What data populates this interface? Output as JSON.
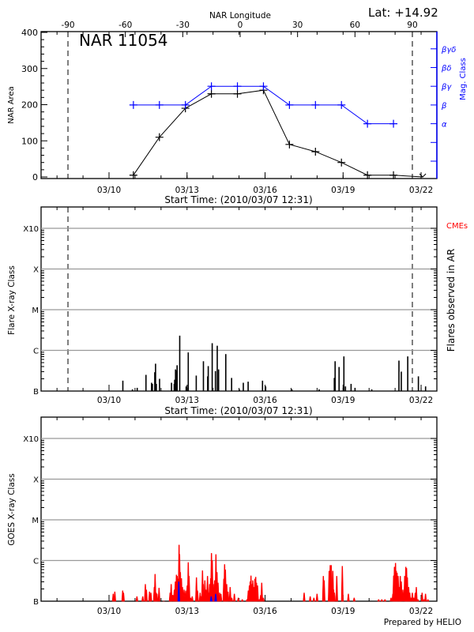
{
  "colors": {
    "area": "#000000",
    "mag_class": "#0000ff",
    "goes_long": "#ff0000",
    "goes_short": "#0000ff",
    "grid": "#999999",
    "cme": "#ff0000"
  },
  "header": {
    "lat_label": "Lat: +14.92",
    "region_label": "NAR 11054"
  },
  "footer": {
    "prepared_by": "Prepared by HELIO"
  },
  "x_dates": {
    "ticks": [
      "03/10",
      "03/13",
      "03/16",
      "03/19",
      "03/22"
    ],
    "xlim": [
      "03/07 09:20",
      "03/22 14:30"
    ],
    "start_time_label": "Start Time: (2010/03/07 12:31)"
  },
  "chart_data": [
    {
      "type": "line",
      "panel": "nar",
      "top_axis": {
        "label": "NAR Longitude",
        "ticks": [
          "-90",
          "-60",
          "-30",
          "0",
          "30",
          "60",
          "90"
        ],
        "tick_values": [
          -90,
          -60,
          -30,
          0,
          30,
          60,
          90
        ]
      },
      "limb_markers_longitude": [
        -90,
        90
      ],
      "ylabel": "NAR Area",
      "ylim": [
        0,
        400
      ],
      "yticks": [
        "0",
        "100",
        "200",
        "300",
        "400"
      ],
      "y2label": "Mag. Class",
      "y2ticks": [
        "",
        "",
        "α",
        "β",
        "βγ",
        "βδ",
        "βγδ"
      ],
      "series": [
        {
          "key": "area",
          "x": [
            "03/10 22:30",
            "03/11 22:30",
            "03/12 22:30",
            "03/13 22:30",
            "03/14 22:30",
            "03/15 22:30",
            "03/16 22:30",
            "03/17 22:30",
            "03/18 22:30",
            "03/19 22:30",
            "03/20 22:30",
            "03/22 01:30"
          ],
          "values": [
            5,
            110,
            190,
            230,
            230,
            240,
            90,
            70,
            40,
            5,
            5,
            0
          ]
        },
        {
          "key": "mag_class",
          "x": [
            "03/10 22:30",
            "03/11 22:30",
            "03/12 22:30",
            "03/13 22:30",
            "03/14 22:30",
            "03/15 22:30",
            "03/16 22:30",
            "03/17 22:30",
            "03/18 22:30",
            "03/19 22:30",
            "03/20 22:30"
          ],
          "values": [
            "β",
            "β",
            "β",
            "βγ",
            "βγ",
            "βγ",
            "β",
            "β",
            "β",
            "α",
            "α"
          ]
        }
      ]
    },
    {
      "type": "bar",
      "panel": "flares",
      "ylabel": "Flare X-ray Class",
      "y2label": "Flares observed in AR",
      "cme_label": "CMEs",
      "yscale": "log",
      "yticks": [
        "B",
        "C",
        "M",
        "X",
        "X10"
      ],
      "grid": true,
      "limb_markers_longitude": [
        -90,
        90
      ],
      "flares": [
        [
          "03/10 12:46",
          "B1.8"
        ],
        [
          "03/10 21:35",
          "B1.1"
        ],
        [
          "03/11 02:01",
          "B1.2"
        ],
        [
          "03/11 10:06",
          "B2.5"
        ],
        [
          "03/11 15:16",
          "B1.6"
        ],
        [
          "03/11 16:01",
          "B1.5"
        ],
        [
          "03/11 18:13",
          "B2.9"
        ],
        [
          "03/11 18:56",
          "B4.7"
        ],
        [
          "03/11 19:40",
          "B1.5"
        ],
        [
          "03/11 22:38",
          "B2.0"
        ],
        [
          "03/12 09:40",
          "B1.6"
        ],
        [
          "03/12 12:09",
          "B1.5"
        ],
        [
          "03/12 12:36",
          "B1.9"
        ],
        [
          "03/12 13:22",
          "B3.4"
        ],
        [
          "03/12 14:05",
          "B3.2"
        ],
        [
          "03/12 14:50",
          "B4.3"
        ],
        [
          "03/12 17:15",
          "C2.3"
        ],
        [
          "03/12 23:10",
          "B1.3"
        ],
        [
          "03/13 01:07",
          "B8.9"
        ],
        [
          "03/13 08:30",
          "B2.4"
        ],
        [
          "03/13 15:07",
          "B5.4"
        ],
        [
          "03/13 19:03",
          "B2.3"
        ],
        [
          "03/13 19:34",
          "B4.1"
        ],
        [
          "03/13 23:13",
          "C1.5"
        ],
        [
          "03/14 02:12",
          "B3.1"
        ],
        [
          "03/14 03:53",
          "C1.3"
        ],
        [
          "03/14 05:07",
          "B3.4"
        ],
        [
          "03/14 11:45",
          "B8.1"
        ],
        [
          "03/14 17:08",
          "B2.1"
        ],
        [
          "03/15 00:17",
          "B1.1"
        ],
        [
          "03/15 03:56",
          "B1.6"
        ],
        [
          "03/15 08:23",
          "B1.7"
        ],
        [
          "03/15 21:39",
          "B1.8"
        ],
        [
          "03/16 00:34",
          "B1.3"
        ],
        [
          "03/17 00:50",
          "B1.1"
        ],
        [
          "03/18 01:55",
          "B1.1"
        ],
        [
          "03/18 15:55",
          "B2.1"
        ],
        [
          "03/18 16:39",
          "B5.4"
        ],
        [
          "03/18 20:18",
          "B3.9"
        ],
        [
          "03/19 00:45",
          "B7.1"
        ],
        [
          "03/19 02:12",
          "B1.3"
        ],
        [
          "03/19 07:22",
          "B1.5"
        ],
        [
          "03/19 11:01",
          "B1.2"
        ],
        [
          "03/20 02:28",
          "B1.1"
        ],
        [
          "03/21 03:33",
          "B5.6"
        ],
        [
          "03/21 05:44",
          "B3.0"
        ],
        [
          "03/21 11:40",
          "B7.1"
        ],
        [
          "03/21 21:30",
          "B2.3"
        ],
        [
          "03/22 04:08",
          "B1.3"
        ]
      ]
    },
    {
      "type": "line",
      "panel": "goes",
      "ylabel": "GOES X-ray Class",
      "yscale": "log",
      "yticks": [
        "B",
        "C",
        "M",
        "X",
        "X10"
      ],
      "grid": true,
      "series": [
        {
          "key": "goes_long",
          "points": [
            [
              "03/10 03:53",
              "B1.5"
            ],
            [
              "03/10 05:21",
              "B1.7"
            ],
            [
              "03/10 12:38",
              "B1.8"
            ],
            [
              "03/10 13:22",
              "B1.6"
            ],
            [
              "03/11 01:46",
              "B1.3"
            ],
            [
              "03/11 07:06",
              "B1.3"
            ],
            [
              "03/11 09:32",
              "B2.6"
            ],
            [
              "03/11 10:30",
              "B1.9"
            ],
            [
              "03/11 13:25",
              "B1.7"
            ],
            [
              "03/11 14:38",
              "B1.6"
            ],
            [
              "03/11 17:48",
              "B2.2"
            ],
            [
              "03/11 18:31",
              "B4.6"
            ],
            [
              "03/11 19:30",
              "B1.6"
            ],
            [
              "03/11 20:14",
              "B1.5"
            ],
            [
              "03/11 22:10",
              "B2.1"
            ],
            [
              "03/12 02:32",
              "B1.0"
            ],
            [
              "03/12 08:23",
              "B1.6"
            ],
            [
              "03/12 09:21",
              "B2.6"
            ],
            [
              "03/12 10:49",
              "B1.4"
            ],
            [
              "03/12 12:16",
              "B1.9"
            ],
            [
              "03/12 13:14",
              "B3.0"
            ],
            [
              "03/12 14:13",
              "B4.4"
            ],
            [
              "03/12 14:56",
              "B4.1"
            ],
            [
              "03/12 15:55",
              "B3.5"
            ],
            [
              "03/12 16:38",
              "C2.4"
            ],
            [
              "03/12 17:07",
              "C1.4"
            ],
            [
              "03/12 17:51",
              "B5.1"
            ],
            [
              "03/12 18:50",
              "B3.6"
            ],
            [
              "03/12 19:48",
              "B2.2"
            ],
            [
              "03/12 21:15",
              "B1.9"
            ],
            [
              "03/12 22:43",
              "B1.8"
            ],
            [
              "03/13 00:10",
              "B2.4"
            ],
            [
              "03/13 01:08",
              "B8.9"
            ],
            [
              "03/13 01:52",
              "B4.1"
            ],
            [
              "03/13 03:20",
              "B1.2"
            ],
            [
              "03/13 04:47",
              "B1.3"
            ],
            [
              "03/13 08:41",
              "B3.8"
            ],
            [
              "03/13 09:39",
              "B1.8"
            ],
            [
              "03/13 12:05",
              "B1.6"
            ],
            [
              "03/13 13:03",
              "B1.3"
            ],
            [
              "03/13 14:16",
              "B5.6"
            ],
            [
              "03/13 14:59",
              "B2.6"
            ],
            [
              "03/13 16:27",
              "B3.2"
            ],
            [
              "03/13 17:26",
              "B1.9"
            ],
            [
              "03/13 18:53",
              "B4.1"
            ],
            [
              "03/13 19:51",
              "B1.6"
            ],
            [
              "03/13 20:49",
              "B2.6"
            ],
            [
              "03/13 21:48",
              "B3.6"
            ],
            [
              "03/13 22:32",
              "C1.5"
            ],
            [
              "03/13 23:16",
              "C1.0"
            ],
            [
              "03/14 00:14",
              "B2.6"
            ],
            [
              "03/14 01:26",
              "B3.2"
            ],
            [
              "03/14 02:40",
              "C1.4"
            ],
            [
              "03/14 03:38",
              "B5.1"
            ],
            [
              "03/14 04:36",
              "B2.8"
            ],
            [
              "03/14 06:04",
              "B1.6"
            ],
            [
              "03/14 07:17",
              "B1.5"
            ],
            [
              "03/14 09:57",
              "B3.5"
            ],
            [
              "03/14 10:41",
              "B8.0"
            ],
            [
              "03/14 11:24",
              "B5.9"
            ],
            [
              "03/14 12:37",
              "B2.6"
            ],
            [
              "03/14 13:50",
              "B1.7"
            ],
            [
              "03/14 15:47",
              "B2.2"
            ],
            [
              "03/14 17:14",
              "B1.2"
            ],
            [
              "03/14 19:40",
              "B1.5"
            ],
            [
              "03/14 23:19",
              "B1.2"
            ],
            [
              "03/15 02:58",
              "B1.1"
            ],
            [
              "03/15 07:20",
              "B1.1"
            ],
            [
              "03/15 08:32",
              "B1.8"
            ],
            [
              "03/15 09:31",
              "B2.4"
            ],
            [
              "03/15 10:15",
              "B3.0"
            ],
            [
              "03/15 10:59",
              "B4.2"
            ],
            [
              "03/15 11:43",
              "B2.6"
            ],
            [
              "03/15 12:41",
              "B3.2"
            ],
            [
              "03/15 13:53",
              "B2.2"
            ],
            [
              "03/15 14:37",
              "B3.5"
            ],
            [
              "03/15 15:21",
              "B3.9"
            ],
            [
              "03/15 16:05",
              "B2.8"
            ],
            [
              "03/15 17:03",
              "B2.4"
            ],
            [
              "03/15 18:45",
              "B1.1"
            ],
            [
              "03/15 19:58",
              "B1.4"
            ],
            [
              "03/15 20:56",
              "B2.8"
            ],
            [
              "03/15 22:24",
              "B1.2"
            ],
            [
              "03/17 12:04",
              "B1.6"
            ],
            [
              "03/17 17:39",
              "B1.3"
            ],
            [
              "03/17 21:03",
              "B1.2"
            ],
            [
              "03/17 23:58",
              "B1.5"
            ],
            [
              "03/18 05:48",
              "B4.1"
            ],
            [
              "03/18 06:32",
              "B3.2"
            ],
            [
              "03/18 11:09",
              "B5.5"
            ],
            [
              "03/18 12:07",
              "B7.6"
            ],
            [
              "03/18 13:05",
              "B7.6"
            ],
            [
              "03/18 13:49",
              "B2.4"
            ],
            [
              "03/18 14:33",
              "B5.5"
            ],
            [
              "03/18 15:17",
              "B1.9"
            ],
            [
              "03/18 16:01",
              "B1.6"
            ],
            [
              "03/18 18:11",
              "B4.1"
            ],
            [
              "03/18 23:18",
              "B7.2"
            ],
            [
              "03/18 23:32",
              "B1.3"
            ],
            [
              "03/19 04:53",
              "B1.5"
            ],
            [
              "03/19 10:14",
              "B1.2"
            ],
            [
              "03/20 08:50",
              "B1.1"
            ],
            [
              "03/20 11:45",
              "B1.1"
            ],
            [
              "03/20 14:40",
              "B1.1"
            ],
            [
              "03/20 20:15",
              "B1.2"
            ],
            [
              "03/20 21:57",
              "B1.5"
            ],
            [
              "03/20 22:41",
              "B4.2"
            ],
            [
              "03/20 23:25",
              "B6.9"
            ],
            [
              "03/21 00:23",
              "B8.6"
            ],
            [
              "03/21 01:07",
              "B5.5"
            ],
            [
              "03/21 01:50",
              "B4.9"
            ],
            [
              "03/21 02:49",
              "B4.1"
            ],
            [
              "03/21 03:47",
              "B2.2"
            ],
            [
              "03/21 04:46",
              "B4.1"
            ],
            [
              "03/21 05:44",
              "B3.0"
            ],
            [
              "03/21 07:11",
              "B1.9"
            ],
            [
              "03/21 08:53",
              "B4.1"
            ],
            [
              "03/21 09:52",
              "B6.9"
            ],
            [
              "03/21 10:35",
              "B6.4"
            ],
            [
              "03/21 11:19",
              "B3.8"
            ],
            [
              "03/21 12:32",
              "B2.2"
            ],
            [
              "03/21 13:31",
              "B1.6"
            ],
            [
              "03/21 14:58",
              "B1.2"
            ],
            [
              "03/21 15:56",
              "B1.6"
            ],
            [
              "03/21 17:09",
              "B1.2"
            ],
            [
              "03/21 18:37",
              "B1.6"
            ],
            [
              "03/21 19:35",
              "B2.2"
            ],
            [
              "03/21 21:02",
              "B1.1"
            ],
            [
              "03/22 00:56",
              "B1.6"
            ],
            [
              "03/22 02:38",
              "B1.1"
            ],
            [
              "03/22 04:05",
              "B1.5"
            ],
            [
              "03/22 06:16",
              "B1.1"
            ]
          ]
        },
        {
          "key": "goes_short",
          "points": [
            [
              "03/12 16:24",
              "B3.0"
            ],
            [
              "03/13 22:17",
              "B1.3"
            ],
            [
              "03/14 02:25",
              "B1.5"
            ]
          ]
        }
      ]
    }
  ]
}
